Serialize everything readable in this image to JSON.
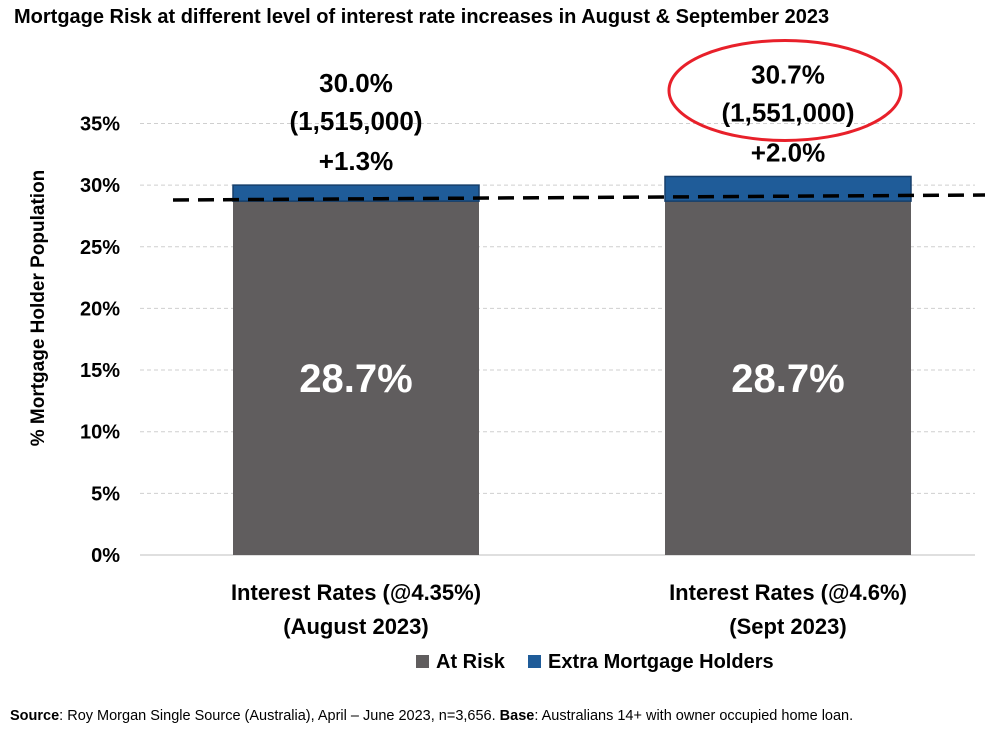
{
  "title": "Mortgage Risk at different level of interest rate increases in August & September 2023",
  "source": {
    "source_label": "Source",
    "source_text": ": Roy Morgan Single Source (Australia), April – June 2023, n=3,656. ",
    "base_label": "Base",
    "base_text": ": Australians 14+ with owner occupied home loan."
  },
  "colors": {
    "at_risk": "#605d5e",
    "extra": "#1f5c99",
    "highlight_circle": "#e8202a"
  },
  "chart_data": {
    "type": "bar",
    "stacked": true,
    "title": "Mortgage Risk at different level of interest rate increases in August & September 2023",
    "xlabel": "",
    "ylabel": "% Mortgage Holder Population",
    "ylim": [
      0,
      35
    ],
    "yticks": [
      "0%",
      "5%",
      "10%",
      "15%",
      "20%",
      "25%",
      "30%",
      "35%"
    ],
    "grid": true,
    "legend": "bottom",
    "categories": [
      [
        "Interest Rates (@4.35%)",
        "(August 2023)"
      ],
      [
        "Interest Rates (@4.6%)",
        "(Sept 2023)"
      ]
    ],
    "series": [
      {
        "name": "At Risk",
        "values": [
          28.7,
          28.7
        ],
        "labels": [
          "28.7%",
          "28.7%"
        ]
      },
      {
        "name": "Extra Mortgage Holders",
        "values": [
          1.3,
          2.0
        ],
        "labels": [
          "+1.3%",
          "+2.0%"
        ]
      }
    ],
    "totals": [
      {
        "pct": "30.0%",
        "count": "(1,515,000)"
      },
      {
        "pct": "30.7%",
        "count": "(1,551,000)"
      }
    ],
    "reference_line": {
      "style": "dashed",
      "value": 28.7
    },
    "highlight": "30.7% (1,551,000)"
  }
}
